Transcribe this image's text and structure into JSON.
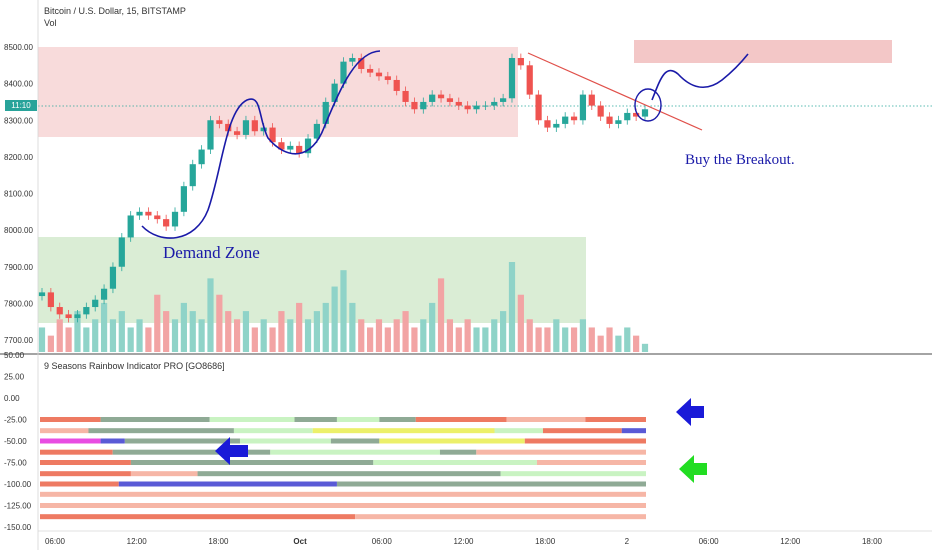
{
  "header": {
    "symbol_line": "Bitcoin / U.S. Dollar, 15, BITSTAMP",
    "volume_label": "Vol",
    "indicator_title": "9 Seasons Rainbow Indicator PRO [GO8686]"
  },
  "price_tag": "11:10",
  "annotations": {
    "demand_zone": "Demand Zone",
    "breakout": "Buy the Breakout."
  },
  "colors": {
    "up": "#26a69a",
    "down": "#ef5350",
    "supply_zone": "#f7d5d5",
    "demand_zone": "#d6ebd0",
    "drawing": "#1a1aa8",
    "trendline": "#e0504a",
    "arrow_blue": "#1a1ad8",
    "arrow_green": "#22dd22"
  },
  "chart_data": [
    {
      "type": "candlestick",
      "title": "Bitcoin / U.S. Dollar, 15, BITSTAMP",
      "x_ticks": [
        "06:00",
        "12:00",
        "18:00",
        "Oct",
        "06:00",
        "12:00",
        "18:00",
        "2",
        "06:00",
        "12:00",
        "18:00"
      ],
      "y_ticks": [
        8500,
        8400,
        8300,
        8200,
        8100,
        8000,
        7900,
        7800,
        7700
      ],
      "ylim": [
        7680,
        8560
      ],
      "grid": false,
      "current_price": 8320,
      "series": [
        {
          "values": [
            7830,
            7790,
            7770,
            7760,
            7770,
            7790,
            7810,
            7840,
            7900,
            7980,
            8040,
            8050,
            8040,
            8030,
            8010,
            8050,
            8120,
            8180,
            8220,
            8300,
            8290,
            8270,
            8260,
            8300,
            8270,
            8280,
            8240,
            8220,
            8230,
            8210,
            8250,
            8290,
            8350,
            8400,
            8460,
            8470,
            8440,
            8430,
            8420,
            8410,
            8380,
            8350,
            8330,
            8350,
            8370,
            8360,
            8350,
            8340,
            8330,
            8340,
            8340,
            8350,
            8360,
            8470,
            8450,
            8370,
            8300,
            8280,
            8290,
            8310,
            8300,
            8370,
            8340,
            8310,
            8290,
            8300,
            8320,
            8310,
            8330
          ]
        }
      ]
    },
    {
      "type": "bar",
      "title": "Vol",
      "values": [
        3,
        2,
        4,
        3,
        5,
        3,
        4,
        6,
        4,
        5,
        3,
        4,
        3,
        7,
        5,
        4,
        6,
        5,
        4,
        9,
        7,
        5,
        4,
        5,
        3,
        4,
        3,
        5,
        4,
        6,
        4,
        5,
        6,
        8,
        10,
        6,
        4,
        3,
        4,
        3,
        4,
        5,
        3,
        4,
        6,
        9,
        4,
        3,
        4,
        3,
        3,
        4,
        5,
        11,
        7,
        4,
        3,
        3,
        4,
        3,
        3,
        4,
        3,
        2,
        3,
        2,
        3,
        2,
        1
      ]
    },
    {
      "type": "heatmap",
      "title": "9 Seasons Rainbow Indicator PRO [GO8686]",
      "y_ticks": [
        50,
        25,
        0,
        -25,
        -50,
        -75,
        -100,
        -125,
        -150
      ],
      "ylim": [
        -150,
        50
      ],
      "legend": [
        "salmon",
        "light salmon",
        "grey-green",
        "light green",
        "yellow",
        "magenta",
        "blue"
      ],
      "rows": [
        {
          "level": -25,
          "segments": [
            [
              "salmon",
              0,
              0.1
            ],
            [
              "grey-green",
              0.1,
              0.28
            ],
            [
              "light green",
              0.28,
              0.42
            ],
            [
              "grey-green",
              0.42,
              0.49
            ],
            [
              "light green",
              0.49,
              0.56
            ],
            [
              "grey-green",
              0.56,
              0.62
            ],
            [
              "salmon",
              0.62,
              0.77
            ],
            [
              "light salmon",
              0.77,
              0.9
            ],
            [
              "salmon",
              0.9,
              1.0
            ]
          ]
        },
        {
          "level": -38,
          "segments": [
            [
              "light salmon",
              0,
              0.08
            ],
            [
              "grey-green",
              0.08,
              0.32
            ],
            [
              "light green",
              0.32,
              0.45
            ],
            [
              "yellow",
              0.45,
              0.75
            ],
            [
              "light green",
              0.75,
              0.83
            ],
            [
              "salmon",
              0.83,
              0.96
            ],
            [
              "blue",
              0.96,
              1.0
            ]
          ]
        },
        {
          "level": -50,
          "segments": [
            [
              "magenta",
              0,
              0.1
            ],
            [
              "blue",
              0.1,
              0.14
            ],
            [
              "grey-green",
              0.14,
              0.33
            ],
            [
              "light green",
              0.33,
              0.48
            ],
            [
              "grey-green",
              0.48,
              0.56
            ],
            [
              "yellow",
              0.56,
              0.8
            ],
            [
              "salmon",
              0.8,
              1.0
            ]
          ]
        },
        {
          "level": -63,
          "segments": [
            [
              "salmon",
              0,
              0.12
            ],
            [
              "grey-green",
              0.12,
              0.38
            ],
            [
              "light green",
              0.38,
              0.66
            ],
            [
              "grey-green",
              0.66,
              0.72
            ],
            [
              "light salmon",
              0.72,
              1.0
            ]
          ]
        },
        {
          "level": -75,
          "segments": [
            [
              "salmon",
              0,
              0.15
            ],
            [
              "grey-green",
              0.15,
              0.55
            ],
            [
              "light green",
              0.55,
              0.82
            ],
            [
              "light salmon",
              0.82,
              1.0
            ]
          ]
        },
        {
          "level": -88,
          "segments": [
            [
              "salmon",
              0,
              0.15
            ],
            [
              "light salmon",
              0.15,
              0.26
            ],
            [
              "grey-green",
              0.26,
              0.76
            ],
            [
              "light green",
              0.76,
              1.0
            ]
          ]
        },
        {
          "level": -100,
          "segments": [
            [
              "salmon",
              0,
              0.13
            ],
            [
              "blue",
              0.13,
              0.49
            ],
            [
              "grey-green",
              0.49,
              1.0
            ]
          ]
        },
        {
          "level": -112,
          "segments": [
            [
              "light salmon",
              0,
              1.0
            ]
          ]
        },
        {
          "level": -125,
          "segments": [
            [
              "light salmon",
              0,
              1.0
            ]
          ]
        },
        {
          "level": -138,
          "segments": [
            [
              "salmon",
              0,
              0.52
            ],
            [
              "light salmon",
              0.52,
              1.0
            ]
          ]
        }
      ]
    }
  ]
}
